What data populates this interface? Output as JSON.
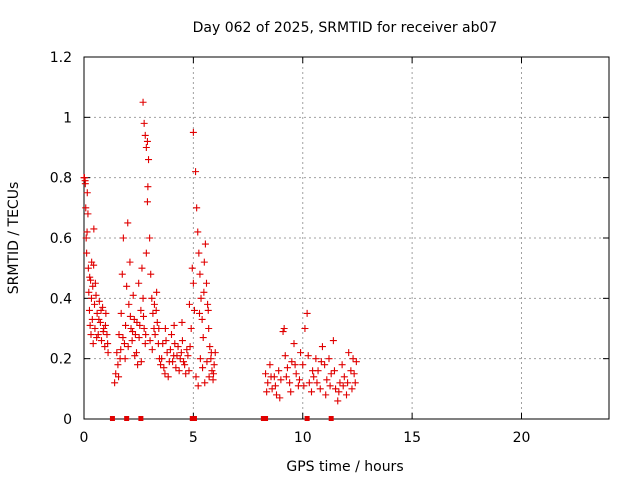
{
  "chart_data": {
    "type": "scatter",
    "title": "Day 062 of 2025, SRMTID for receiver ab07",
    "xlabel": "GPS time / hours",
    "ylabel": "SRMTID / TECUs",
    "xlim": [
      0,
      24
    ],
    "ylim": [
      0,
      1.2
    ],
    "x_ticks": [
      0,
      5,
      10,
      15,
      20
    ],
    "x_tick_labels": [
      "0",
      "5",
      "10",
      "15",
      "20"
    ],
    "y_ticks": [
      0,
      0.2,
      0.4,
      0.6,
      0.8,
      1.0,
      1.2
    ],
    "y_tick_labels": [
      "0",
      "0.2",
      "0.4",
      "0.6",
      "0.8",
      "1",
      "1.2"
    ],
    "grid": true,
    "color": "#e00000",
    "marker": "plus",
    "series": [
      {
        "name": "SRMTID",
        "points": [
          [
            0.0,
            0.8
          ],
          [
            0.05,
            0.79
          ],
          [
            0.08,
            0.7
          ],
          [
            0.1,
            0.6
          ],
          [
            0.12,
            0.55
          ],
          [
            0.15,
            0.75
          ],
          [
            0.18,
            0.68
          ],
          [
            0.2,
            0.5
          ],
          [
            0.22,
            0.42
          ],
          [
            0.25,
            0.36
          ],
          [
            0.28,
            0.31
          ],
          [
            0.3,
            0.46
          ],
          [
            0.32,
            0.28
          ],
          [
            0.35,
            0.52
          ],
          [
            0.38,
            0.33
          ],
          [
            0.4,
            0.44
          ],
          [
            0.42,
            0.25
          ],
          [
            0.45,
            0.63
          ],
          [
            0.48,
            0.38
          ],
          [
            0.5,
            0.3
          ],
          [
            0.55,
            0.41
          ],
          [
            0.6,
            0.35
          ],
          [
            0.65,
            0.28
          ],
          [
            0.7,
            0.39
          ],
          [
            0.75,
            0.32
          ],
          [
            0.8,
            0.26
          ],
          [
            0.85,
            0.37
          ],
          [
            0.9,
            0.3
          ],
          [
            0.95,
            0.24
          ],
          [
            1.0,
            0.35
          ],
          [
            1.05,
            0.28
          ],
          [
            1.1,
            0.22
          ],
          [
            0.02,
            0.8
          ],
          [
            0.06,
            0.78
          ],
          [
            0.14,
            0.62
          ],
          [
            0.26,
            0.47
          ],
          [
            0.34,
            0.4
          ],
          [
            0.44,
            0.51
          ],
          [
            0.52,
            0.45
          ],
          [
            0.58,
            0.27
          ],
          [
            0.68,
            0.33
          ],
          [
            0.78,
            0.36
          ],
          [
            0.88,
            0.29
          ],
          [
            0.98,
            0.31
          ],
          [
            1.08,
            0.25
          ],
          [
            1.4,
            0.12
          ],
          [
            1.45,
            0.15
          ],
          [
            1.5,
            0.22
          ],
          [
            1.55,
            0.18
          ],
          [
            1.6,
            0.28
          ],
          [
            1.65,
            0.2
          ],
          [
            1.7,
            0.35
          ],
          [
            1.75,
            0.48
          ],
          [
            1.8,
            0.6
          ],
          [
            1.85,
            0.25
          ],
          [
            1.9,
            0.31
          ],
          [
            1.95,
            0.44
          ],
          [
            2.0,
            0.65
          ],
          [
            2.05,
            0.38
          ],
          [
            2.1,
            0.52
          ],
          [
            2.15,
            0.3
          ],
          [
            2.2,
            0.26
          ],
          [
            2.25,
            0.41
          ],
          [
            2.3,
            0.33
          ],
          [
            2.35,
            0.28
          ],
          [
            2.4,
            0.22
          ],
          [
            2.45,
            0.18
          ],
          [
            2.5,
            0.45
          ],
          [
            2.55,
            0.31
          ],
          [
            2.6,
            0.36
          ],
          [
            2.65,
            0.5
          ],
          [
            2.7,
            0.4
          ],
          [
            2.75,
            0.3
          ],
          [
            2.8,
            0.25
          ],
          [
            2.85,
            0.55
          ],
          [
            2.9,
            0.72
          ],
          [
            2.95,
            0.86
          ],
          [
            2.7,
            1.05
          ],
          [
            2.75,
            0.98
          ],
          [
            2.8,
            0.94
          ],
          [
            2.85,
            0.9
          ],
          [
            2.9,
            0.92
          ],
          [
            2.92,
            0.77
          ],
          [
            3.0,
            0.6
          ],
          [
            3.05,
            0.48
          ],
          [
            3.1,
            0.4
          ],
          [
            3.15,
            0.35
          ],
          [
            3.2,
            0.3
          ],
          [
            3.25,
            0.28
          ],
          [
            3.3,
            0.36
          ],
          [
            3.35,
            0.32
          ],
          [
            3.4,
            0.25
          ],
          [
            3.45,
            0.2
          ],
          [
            1.58,
            0.14
          ],
          [
            1.68,
            0.23
          ],
          [
            1.78,
            0.27
          ],
          [
            1.88,
            0.2
          ],
          [
            2.02,
            0.24
          ],
          [
            2.12,
            0.34
          ],
          [
            2.22,
            0.29
          ],
          [
            2.32,
            0.21
          ],
          [
            2.42,
            0.32
          ],
          [
            2.52,
            0.27
          ],
          [
            2.62,
            0.19
          ],
          [
            2.72,
            0.34
          ],
          [
            2.82,
            0.28
          ],
          [
            3.02,
            0.26
          ],
          [
            3.12,
            0.23
          ],
          [
            3.22,
            0.38
          ],
          [
            3.32,
            0.42
          ],
          [
            3.42,
            0.3
          ],
          [
            3.5,
            0.18
          ],
          [
            3.6,
            0.25
          ],
          [
            3.7,
            0.15
          ],
          [
            3.8,
            0.22
          ],
          [
            3.9,
            0.19
          ],
          [
            4.0,
            0.28
          ],
          [
            4.1,
            0.21
          ],
          [
            4.2,
            0.17
          ],
          [
            4.3,
            0.24
          ],
          [
            4.4,
            0.2
          ],
          [
            4.5,
            0.26
          ],
          [
            4.6,
            0.18
          ],
          [
            4.7,
            0.23
          ],
          [
            4.8,
            0.16
          ],
          [
            4.9,
            0.3
          ],
          [
            4.95,
            0.5
          ],
          [
            5.0,
            0.45
          ],
          [
            5.05,
            0.36
          ],
          [
            3.55,
            0.2
          ],
          [
            3.65,
            0.17
          ],
          [
            3.75,
            0.26
          ],
          [
            3.85,
            0.14
          ],
          [
            3.95,
            0.23
          ],
          [
            4.05,
            0.19
          ],
          [
            4.15,
            0.25
          ],
          [
            4.25,
            0.21
          ],
          [
            4.35,
            0.16
          ],
          [
            4.45,
            0.22
          ],
          [
            4.55,
            0.19
          ],
          [
            4.65,
            0.15
          ],
          [
            4.75,
            0.21
          ],
          [
            4.85,
            0.24
          ],
          [
            3.72,
            0.3
          ],
          [
            4.12,
            0.31
          ],
          [
            4.48,
            0.32
          ],
          [
            4.82,
            0.38
          ],
          [
            5.0,
            0.95
          ],
          [
            5.1,
            0.82
          ],
          [
            5.15,
            0.7
          ],
          [
            5.2,
            0.62
          ],
          [
            5.25,
            0.55
          ],
          [
            5.3,
            0.48
          ],
          [
            5.35,
            0.4
          ],
          [
            5.4,
            0.33
          ],
          [
            5.45,
            0.27
          ],
          [
            5.5,
            0.52
          ],
          [
            5.55,
            0.58
          ],
          [
            5.6,
            0.45
          ],
          [
            5.65,
            0.38
          ],
          [
            5.7,
            0.3
          ],
          [
            5.75,
            0.24
          ],
          [
            5.8,
            0.2
          ],
          [
            5.85,
            0.16
          ],
          [
            5.9,
            0.13
          ],
          [
            5.95,
            0.18
          ],
          [
            6.0,
            0.22
          ],
          [
            5.12,
            0.14
          ],
          [
            5.22,
            0.11
          ],
          [
            5.32,
            0.2
          ],
          [
            5.42,
            0.17
          ],
          [
            5.52,
            0.12
          ],
          [
            5.62,
            0.19
          ],
          [
            5.72,
            0.14
          ],
          [
            5.82,
            0.22
          ],
          [
            5.92,
            0.15
          ],
          [
            5.28,
            0.35
          ],
          [
            5.48,
            0.42
          ],
          [
            5.68,
            0.36
          ],
          [
            8.3,
            0.15
          ],
          [
            8.4,
            0.12
          ],
          [
            8.5,
            0.18
          ],
          [
            8.6,
            0.1
          ],
          [
            8.7,
            0.14
          ],
          [
            8.8,
            0.08
          ],
          [
            8.9,
            0.16
          ],
          [
            9.0,
            0.13
          ],
          [
            9.1,
            0.29
          ],
          [
            9.15,
            0.3
          ],
          [
            9.2,
            0.21
          ],
          [
            9.3,
            0.17
          ],
          [
            9.4,
            0.12
          ],
          [
            9.5,
            0.19
          ],
          [
            9.6,
            0.25
          ],
          [
            9.7,
            0.15
          ],
          [
            9.8,
            0.11
          ],
          [
            9.9,
            0.22
          ],
          [
            10.0,
            0.18
          ],
          [
            10.1,
            0.3
          ],
          [
            10.2,
            0.35
          ],
          [
            10.3,
            0.12
          ],
          [
            10.4,
            0.09
          ],
          [
            10.5,
            0.14
          ],
          [
            10.6,
            0.2
          ],
          [
            10.7,
            0.16
          ],
          [
            10.8,
            0.1
          ],
          [
            10.9,
            0.24
          ],
          [
            11.0,
            0.18
          ],
          [
            11.1,
            0.13
          ],
          [
            11.2,
            0.2
          ],
          [
            11.3,
            0.15
          ],
          [
            11.4,
            0.26
          ],
          [
            11.5,
            0.1
          ],
          [
            11.6,
            0.06
          ],
          [
            11.7,
            0.12
          ],
          [
            11.8,
            0.18
          ],
          [
            11.9,
            0.14
          ],
          [
            12.0,
            0.08
          ],
          [
            12.1,
            0.22
          ],
          [
            12.2,
            0.16
          ],
          [
            12.3,
            0.2
          ],
          [
            12.4,
            0.12
          ],
          [
            12.45,
            0.19
          ],
          [
            8.35,
            0.09
          ],
          [
            8.55,
            0.14
          ],
          [
            8.75,
            0.11
          ],
          [
            8.95,
            0.07
          ],
          [
            9.25,
            0.14
          ],
          [
            9.45,
            0.09
          ],
          [
            9.65,
            0.18
          ],
          [
            9.85,
            0.13
          ],
          [
            10.05,
            0.11
          ],
          [
            10.25,
            0.21
          ],
          [
            10.45,
            0.16
          ],
          [
            10.65,
            0.12
          ],
          [
            10.85,
            0.19
          ],
          [
            11.05,
            0.08
          ],
          [
            11.25,
            0.11
          ],
          [
            11.45,
            0.16
          ],
          [
            11.65,
            0.09
          ],
          [
            11.85,
            0.11
          ],
          [
            12.05,
            0.12
          ],
          [
            12.25,
            0.1
          ],
          [
            12.35,
            0.15
          ]
        ]
      }
    ],
    "zero_markers": {
      "marker": "square",
      "x": [
        1.3,
        1.95,
        2.6,
        4.95,
        5.05,
        8.2,
        8.3,
        10.2,
        11.3
      ],
      "y": 0
    }
  }
}
